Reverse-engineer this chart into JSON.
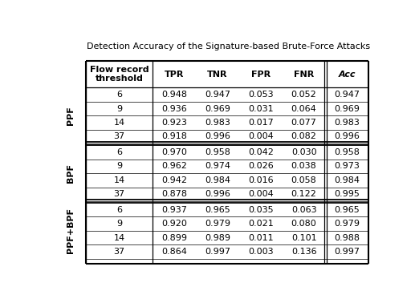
{
  "title": "Detection Accuracy of the Signature-based Brute-Force Attacks",
  "headers": [
    "Flow record\nthreshold",
    "TPR",
    "TNR",
    "FPR",
    "FNR",
    "Acc"
  ],
  "row_groups": [
    {
      "label": "PPF",
      "rows": [
        [
          "6",
          "0.948",
          "0.947",
          "0.053",
          "0.052",
          "0.947"
        ],
        [
          "9",
          "0.936",
          "0.969",
          "0.031",
          "0.064",
          "0.969"
        ],
        [
          "14",
          "0.923",
          "0.983",
          "0.017",
          "0.077",
          "0.983"
        ],
        [
          "37",
          "0.918",
          "0.996",
          "0.004",
          "0.082",
          "0.996"
        ]
      ]
    },
    {
      "label": "BPF",
      "rows": [
        [
          "6",
          "0.970",
          "0.958",
          "0.042",
          "0.030",
          "0.958"
        ],
        [
          "9",
          "0.962",
          "0.974",
          "0.026",
          "0.038",
          "0.973"
        ],
        [
          "14",
          "0.942",
          "0.984",
          "0.016",
          "0.058",
          "0.984"
        ],
        [
          "37",
          "0.878",
          "0.996",
          "0.004",
          "0.122",
          "0.995"
        ]
      ]
    },
    {
      "label": "PPF+BPF",
      "rows": [
        [
          "6",
          "0.937",
          "0.965",
          "0.035",
          "0.063",
          "0.965"
        ],
        [
          "9",
          "0.920",
          "0.979",
          "0.021",
          "0.080",
          "0.979"
        ],
        [
          "14",
          "0.899",
          "0.989",
          "0.011",
          "0.101",
          "0.988"
        ],
        [
          "37",
          "0.864",
          "0.997",
          "0.003",
          "0.136",
          "0.997"
        ]
      ]
    }
  ],
  "background_color": "#ffffff"
}
